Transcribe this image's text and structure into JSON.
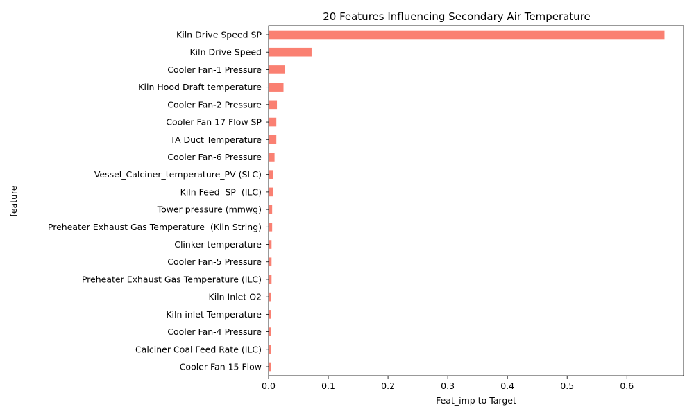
{
  "chart_data": {
    "type": "bar",
    "orientation": "horizontal",
    "title": "20 Features Influencing Secondary Air Temperature",
    "xlabel": "Feat_imp to Target",
    "ylabel": "feature",
    "bar_color": "#fa8072",
    "xlim": [
      0,
      0.695
    ],
    "xticks": [
      0.0,
      0.1,
      0.2,
      0.3,
      0.4,
      0.5,
      0.6
    ],
    "xtick_labels": [
      "0.0",
      "0.1",
      "0.2",
      "0.3",
      "0.4",
      "0.5",
      "0.6"
    ],
    "grid": false,
    "categories": [
      "Kiln Drive Speed SP",
      "Kiln Drive Speed",
      "Cooler Fan-1 Pressure",
      "Kiln Hood Draft temperature",
      "Cooler Fan-2 Pressure",
      "Cooler Fan 17 Flow SP",
      "TA Duct Temperature",
      "Cooler Fan-6 Pressure",
      "Vessel_Calciner_temperature_PV (SLC)",
      "Kiln Feed  SP  (ILC)",
      "Tower pressure (mmwg)",
      "Preheater Exhaust Gas Temperature  (Kiln String)",
      "Clinker temperature",
      "Cooler Fan-5 Pressure",
      "Preheater Exhaust Gas Temperature (ILC)",
      "Kiln Inlet O2",
      "Kiln inlet Temperature",
      "Cooler Fan-4 Pressure",
      "Calciner Coal Feed Rate (ILC)",
      "Cooler Fan 15 Flow"
    ],
    "values": [
      0.663,
      0.072,
      0.027,
      0.025,
      0.014,
      0.013,
      0.013,
      0.01,
      0.007,
      0.007,
      0.006,
      0.006,
      0.005,
      0.005,
      0.005,
      0.004,
      0.004,
      0.004,
      0.004,
      0.004
    ]
  }
}
